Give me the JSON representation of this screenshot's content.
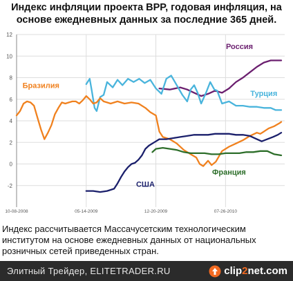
{
  "header": {
    "title_line1": "Индекс инфляции проекта BPP, годовая инфляция, на",
    "title_line2": "основе ежедневных данных  за последние 365 дней."
  },
  "caption": {
    "line1": "Индекс рассчитывается Массачусетским технологическим",
    "line2": "институтом на основе ежедневных данных от национальных",
    "line3": "розничных сетей приведенных стран."
  },
  "footer": {
    "text": "Элитный Трейдер, ELITETRADER.RU",
    "logo": "clip2net.com",
    "logo_parts": [
      "clip",
      "2",
      "net",
      ".com"
    ],
    "logo_icon": "clip2net-arrow-icon"
  },
  "chart_data": {
    "type": "line",
    "title": "Индекс инфляции проекта BPP, годовая инфляция, на основе ежедневных данных  за последние 365 дней.",
    "xlabel": "",
    "ylabel": "",
    "x_ticks": [
      "10-08-2008",
      "05-14-2009",
      "12-20-2009",
      "07-26-2010"
    ],
    "x_tick_pos": [
      0,
      1,
      2,
      3
    ],
    "xlim": [
      0,
      3.85
    ],
    "y_ticks": [
      -2,
      0,
      2,
      4,
      6,
      8,
      10,
      12
    ],
    "ylim": [
      -4,
      12
    ],
    "grid": true,
    "series": [
      {
        "name": "Россия",
        "color": "#6b1f6f",
        "label_at": [
          3.2,
          10.9
        ],
        "points": [
          [
            2.05,
            7.0
          ],
          [
            2.2,
            6.9
          ],
          [
            2.35,
            7.1
          ],
          [
            2.45,
            6.9
          ],
          [
            2.55,
            6.6
          ],
          [
            2.65,
            6.3
          ],
          [
            2.75,
            6.5
          ],
          [
            2.85,
            6.8
          ],
          [
            2.95,
            6.6
          ],
          [
            3.05,
            7.0
          ],
          [
            3.15,
            7.6
          ],
          [
            3.25,
            8.0
          ],
          [
            3.35,
            8.5
          ],
          [
            3.45,
            9.0
          ],
          [
            3.55,
            9.4
          ],
          [
            3.65,
            9.6
          ],
          [
            3.75,
            9.6
          ],
          [
            3.8,
            9.6
          ]
        ]
      },
      {
        "name": "Турция",
        "color": "#49b4dc",
        "label_at": [
          3.55,
          6.55
        ],
        "points": [
          [
            1.0,
            7.4
          ],
          [
            1.05,
            7.9
          ],
          [
            1.08,
            6.8
          ],
          [
            1.12,
            5.2
          ],
          [
            1.15,
            4.9
          ],
          [
            1.2,
            6.2
          ],
          [
            1.25,
            6.4
          ],
          [
            1.3,
            7.6
          ],
          [
            1.38,
            7.1
          ],
          [
            1.45,
            7.8
          ],
          [
            1.52,
            7.3
          ],
          [
            1.6,
            7.9
          ],
          [
            1.68,
            7.6
          ],
          [
            1.76,
            7.9
          ],
          [
            1.84,
            7.5
          ],
          [
            1.92,
            7.8
          ],
          [
            2.0,
            7.0
          ],
          [
            2.08,
            6.5
          ],
          [
            2.15,
            7.9
          ],
          [
            2.22,
            8.2
          ],
          [
            2.3,
            7.3
          ],
          [
            2.38,
            6.4
          ],
          [
            2.45,
            5.8
          ],
          [
            2.5,
            6.9
          ],
          [
            2.55,
            7.3
          ],
          [
            2.6,
            6.6
          ],
          [
            2.65,
            5.6
          ],
          [
            2.72,
            6.6
          ],
          [
            2.78,
            7.6
          ],
          [
            2.84,
            6.9
          ],
          [
            2.88,
            6.8
          ],
          [
            2.95,
            5.6
          ],
          [
            3.05,
            5.8
          ],
          [
            3.15,
            5.4
          ],
          [
            3.25,
            5.4
          ],
          [
            3.35,
            5.3
          ],
          [
            3.45,
            5.3
          ],
          [
            3.55,
            5.2
          ],
          [
            3.65,
            5.2
          ],
          [
            3.72,
            5.0
          ],
          [
            3.8,
            5.0
          ]
        ]
      },
      {
        "name": "Бразилия",
        "color": "#f0811e",
        "label_at": [
          0.35,
          7.3
        ],
        "points": [
          [
            0.0,
            4.5
          ],
          [
            0.05,
            4.9
          ],
          [
            0.1,
            5.6
          ],
          [
            0.15,
            5.8
          ],
          [
            0.2,
            5.7
          ],
          [
            0.25,
            5.4
          ],
          [
            0.3,
            4.3
          ],
          [
            0.35,
            3.2
          ],
          [
            0.4,
            2.3
          ],
          [
            0.45,
            2.9
          ],
          [
            0.5,
            3.6
          ],
          [
            0.55,
            4.6
          ],
          [
            0.6,
            5.2
          ],
          [
            0.65,
            5.7
          ],
          [
            0.7,
            5.6
          ],
          [
            0.75,
            5.7
          ],
          [
            0.8,
            5.8
          ],
          [
            0.85,
            5.8
          ],
          [
            0.9,
            5.6
          ],
          [
            0.95,
            5.9
          ],
          [
            1.0,
            6.3
          ],
          [
            1.05,
            6.0
          ],
          [
            1.1,
            5.6
          ],
          [
            1.15,
            5.7
          ],
          [
            1.2,
            6.1
          ],
          [
            1.25,
            5.8
          ],
          [
            1.3,
            5.7
          ],
          [
            1.35,
            5.6
          ],
          [
            1.45,
            5.8
          ],
          [
            1.55,
            5.6
          ],
          [
            1.65,
            5.7
          ],
          [
            1.75,
            5.6
          ],
          [
            1.85,
            5.2
          ],
          [
            1.92,
            4.8
          ],
          [
            2.0,
            4.5
          ],
          [
            2.05,
            3.0
          ],
          [
            2.1,
            2.5
          ],
          [
            2.2,
            2.3
          ],
          [
            2.3,
            1.9
          ],
          [
            2.4,
            1.3
          ],
          [
            2.5,
            0.9
          ],
          [
            2.58,
            0.6
          ],
          [
            2.63,
            0.0
          ],
          [
            2.68,
            -0.2
          ],
          [
            2.75,
            0.3
          ],
          [
            2.8,
            -0.1
          ],
          [
            2.86,
            0.2
          ],
          [
            2.95,
            1.2
          ],
          [
            3.05,
            1.6
          ],
          [
            3.15,
            1.9
          ],
          [
            3.25,
            2.2
          ],
          [
            3.35,
            2.6
          ],
          [
            3.45,
            2.9
          ],
          [
            3.5,
            2.8
          ],
          [
            3.55,
            3.0
          ],
          [
            3.62,
            3.3
          ],
          [
            3.7,
            3.5
          ],
          [
            3.78,
            3.8
          ],
          [
            3.8,
            3.9
          ]
        ]
      },
      {
        "name": "Франция",
        "color": "#2d6e2a",
        "label_at": [
          3.05,
          -0.75
        ],
        "points": [
          [
            1.95,
            1.1
          ],
          [
            2.0,
            1.4
          ],
          [
            2.1,
            1.5
          ],
          [
            2.2,
            1.4
          ],
          [
            2.3,
            1.3
          ],
          [
            2.4,
            1.1
          ],
          [
            2.5,
            1.0
          ],
          [
            2.6,
            1.0
          ],
          [
            2.7,
            1.0
          ],
          [
            2.8,
            0.9
          ],
          [
            2.9,
            0.9
          ],
          [
            3.0,
            1.0
          ],
          [
            3.1,
            1.0
          ],
          [
            3.2,
            1.0
          ],
          [
            3.3,
            1.1
          ],
          [
            3.4,
            1.1
          ],
          [
            3.5,
            1.2
          ],
          [
            3.6,
            1.2
          ],
          [
            3.7,
            0.9
          ],
          [
            3.8,
            0.8
          ]
        ]
      },
      {
        "name": "США",
        "color": "#1a1f6b",
        "label_at": [
          1.85,
          -1.85
        ],
        "points": [
          [
            1.0,
            -2.5
          ],
          [
            1.1,
            -2.5
          ],
          [
            1.2,
            -2.6
          ],
          [
            1.3,
            -2.5
          ],
          [
            1.4,
            -2.3
          ],
          [
            1.45,
            -1.8
          ],
          [
            1.5,
            -1.2
          ],
          [
            1.55,
            -0.7
          ],
          [
            1.6,
            -0.3
          ],
          [
            1.65,
            0.0
          ],
          [
            1.7,
            0.1
          ],
          [
            1.75,
            0.4
          ],
          [
            1.8,
            0.8
          ],
          [
            1.85,
            1.4
          ],
          [
            1.9,
            1.7
          ],
          [
            1.95,
            1.9
          ],
          [
            2.0,
            2.1
          ],
          [
            2.05,
            2.3
          ],
          [
            2.15,
            2.3
          ],
          [
            2.25,
            2.4
          ],
          [
            2.35,
            2.5
          ],
          [
            2.45,
            2.6
          ],
          [
            2.55,
            2.7
          ],
          [
            2.65,
            2.7
          ],
          [
            2.75,
            2.7
          ],
          [
            2.85,
            2.8
          ],
          [
            2.95,
            2.8
          ],
          [
            3.05,
            2.8
          ],
          [
            3.15,
            2.7
          ],
          [
            3.25,
            2.7
          ],
          [
            3.35,
            2.6
          ],
          [
            3.45,
            2.3
          ],
          [
            3.52,
            2.1
          ],
          [
            3.6,
            2.3
          ],
          [
            3.68,
            2.5
          ],
          [
            3.75,
            2.7
          ],
          [
            3.8,
            2.9
          ]
        ]
      }
    ]
  }
}
